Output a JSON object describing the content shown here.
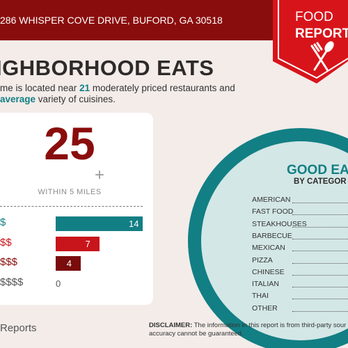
{
  "header": {
    "address": "286 WHISPER COVE DRIVE, BUFORD, GA 30518",
    "badge": [
      "FOOD",
      "REPORT"
    ]
  },
  "title": "IGHBORHOOD EATS",
  "summary": {
    "line1": [
      "me is located near ",
      "21",
      " moderately priced restaurants and"
    ],
    "line2": [
      "average",
      " variety of cuisines."
    ]
  },
  "card": {
    "count": "25",
    "plus": "+",
    "within": "WITHIN 5 MILES",
    "price_tiers": [
      {
        "label": "$",
        "value": 14,
        "color": "#127f84",
        "text_color": "#127f84"
      },
      {
        "label": "$$",
        "value": 7,
        "color": "#c8151b",
        "text_color": "#c8151b"
      },
      {
        "label": "$$$",
        "value": 4,
        "color": "#7a0c0c",
        "text_color": "#8a0d0d"
      },
      {
        "label": "$$$$",
        "value": 0,
        "color": "#555555",
        "text_color": "#555555"
      }
    ]
  },
  "categories": {
    "title": "GOOD EA",
    "subtitle": "BY CATEGOR",
    "items": [
      "AMERICAN",
      "FAST FOOD",
      "STEAKHOUSES",
      "BARBECUE",
      "MEXICAN",
      "PIZZA",
      "CHINESE",
      "ITALIAN",
      "THAI",
      "OTHER"
    ]
  },
  "footer": {
    "brand": "Reports",
    "disclaimer_label": "DISCLAIMER:",
    "disclaimer_text": [
      " The information in this report is from third-party sour",
      "accuracy cannot be guaranteed."
    ]
  }
}
